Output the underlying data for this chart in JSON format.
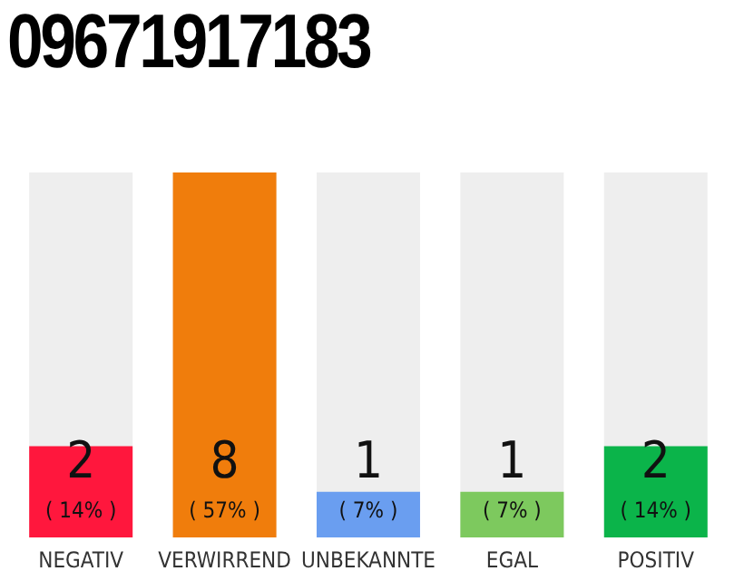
{
  "chart_data": {
    "type": "bar",
    "title": "09671917183",
    "categories": [
      "NEGATIV",
      "VERWIRREND",
      "UNBEKANNTE",
      "EGAL",
      "POSITIV"
    ],
    "values": [
      2,
      8,
      1,
      1,
      2
    ],
    "colors": [
      "#ff173d",
      "#f07d0c",
      "#6a9ef0",
      "#7dc95e",
      "#0bb44a"
    ],
    "data_labels": true,
    "annotations": [
      "( 14% )",
      "( 57% )",
      "( 7% )",
      "( 7% )",
      "( 14% )"
    ],
    "tick_labels": "x"
  }
}
